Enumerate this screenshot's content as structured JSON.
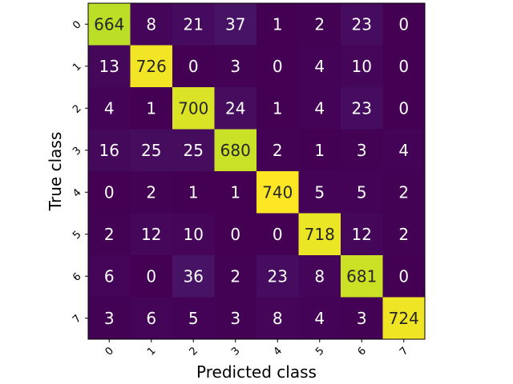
{
  "chart_data": {
    "type": "heatmap",
    "title": "",
    "xlabel": "Predicted class",
    "ylabel": "True class",
    "x_categories": [
      "0",
      "1",
      "2",
      "3",
      "4",
      "5",
      "6",
      "7"
    ],
    "y_categories": [
      "0",
      "1",
      "2",
      "3",
      "4",
      "5",
      "6",
      "7"
    ],
    "values": [
      [
        664,
        8,
        21,
        37,
        1,
        2,
        23,
        0
      ],
      [
        13,
        726,
        0,
        3,
        0,
        4,
        10,
        0
      ],
      [
        4,
        1,
        700,
        24,
        1,
        4,
        23,
        0
      ],
      [
        16,
        25,
        25,
        680,
        2,
        1,
        3,
        4
      ],
      [
        0,
        2,
        1,
        1,
        740,
        5,
        5,
        2
      ],
      [
        2,
        12,
        10,
        0,
        0,
        718,
        12,
        2
      ],
      [
        6,
        0,
        36,
        2,
        23,
        8,
        681,
        0
      ],
      [
        3,
        6,
        5,
        3,
        8,
        4,
        3,
        724
      ]
    ],
    "colormap": "viridis",
    "value_range": [
      0,
      740
    ],
    "grid": false,
    "legend": "none",
    "colors": {
      "text_on_dark": "#ffffff",
      "text_on_light": "#262626",
      "axis": "#000000"
    }
  }
}
